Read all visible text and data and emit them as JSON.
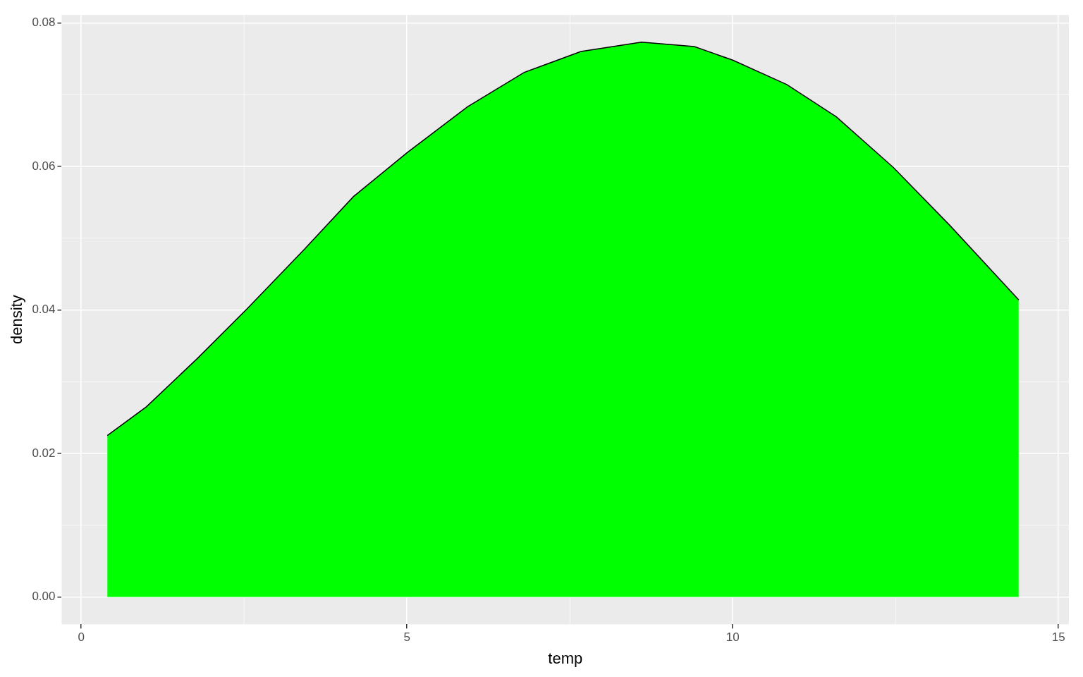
{
  "chart_data": {
    "type": "area",
    "xlabel": "temp",
    "ylabel": "density",
    "x": [
      0.4,
      1.0,
      1.79,
      2.55,
      3.42,
      4.18,
      5.0,
      5.93,
      6.8,
      7.67,
      8.6,
      9.41,
      10.0,
      10.83,
      11.59,
      12.46,
      13.33,
      14.39
    ],
    "series": [
      {
        "color": "#00ff00",
        "values": [
          0.0225,
          0.0265,
          0.0333,
          0.0402,
          0.0484,
          0.0558,
          0.0619,
          0.0683,
          0.0731,
          0.076,
          0.0773,
          0.0767,
          0.0748,
          0.0714,
          0.0669,
          0.0599,
          0.0518,
          0.0414
        ]
      }
    ],
    "xlim": [
      -0.3,
      15.16
    ],
    "xticks": [
      0,
      5,
      10,
      15
    ],
    "ylim": [
      -0.0038,
      0.0811
    ],
    "yticks": [
      {
        "value": 0,
        "label": "0.00"
      },
      {
        "value": 0.02,
        "label": "0.02"
      },
      {
        "value": 0.04,
        "label": "0.04"
      },
      {
        "value": 0.06,
        "label": "0.06"
      },
      {
        "value": 0.08,
        "label": "0.08"
      }
    ],
    "grid": true,
    "legend": false
  }
}
